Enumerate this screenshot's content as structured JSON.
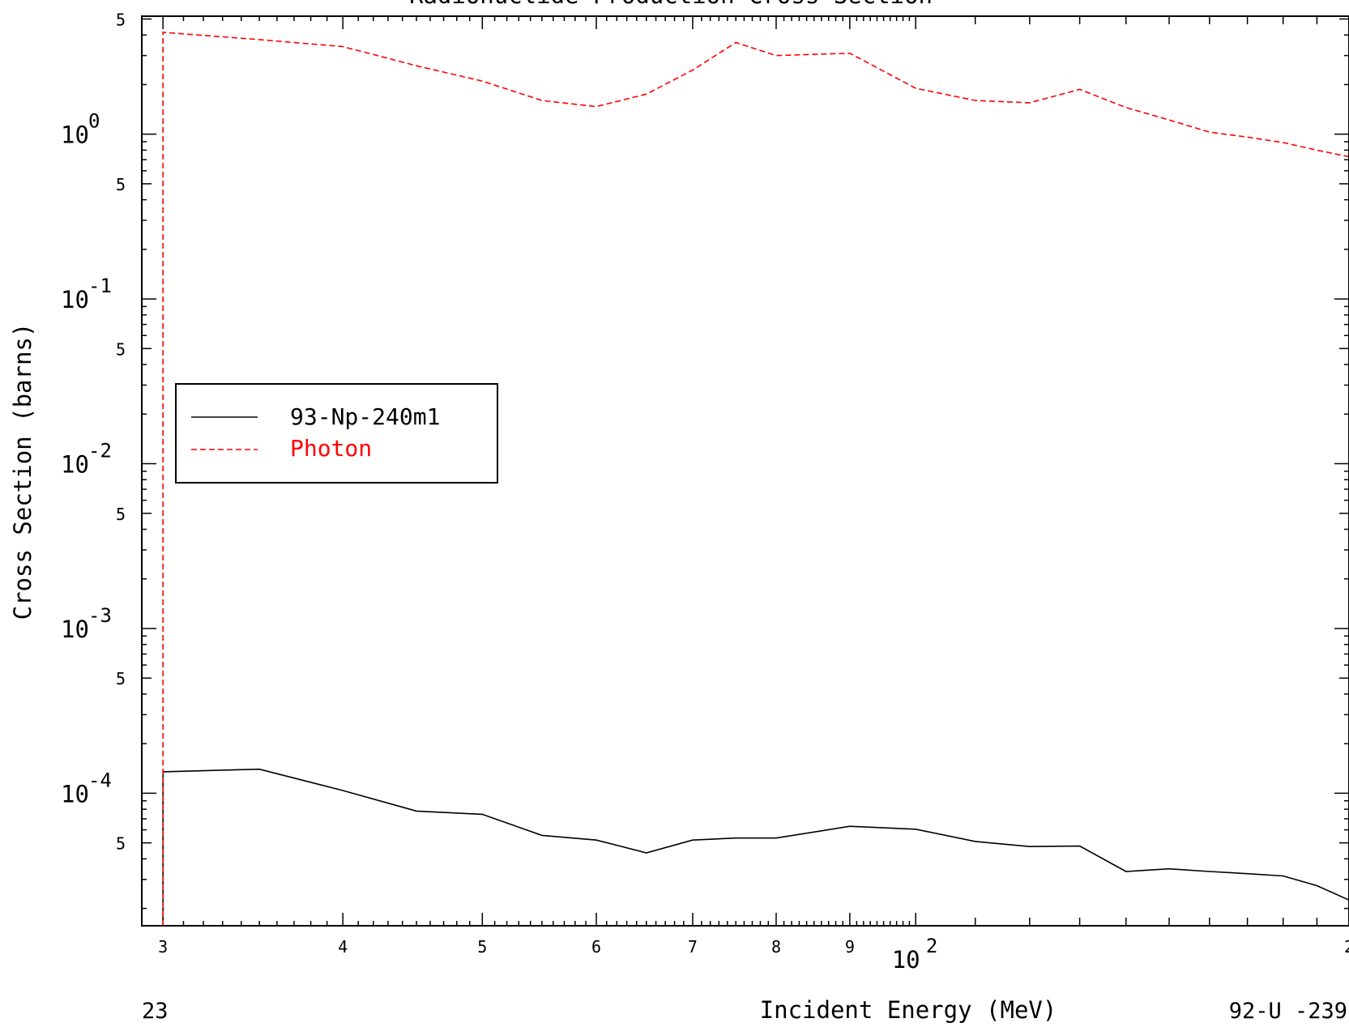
{
  "chart_data": {
    "type": "line",
    "title": "Radionuclide Production Cross Section",
    "xlabel": "Incident Energy (MeV)",
    "ylabel": "Cross Section (barns)",
    "xscale": "log",
    "yscale": "log",
    "xlim": [
      29,
      200
    ],
    "ylim": [
      1.57e-05,
      5.2
    ],
    "x_ticks": [
      {
        "value": 30,
        "label": "3"
      },
      {
        "value": 40,
        "label": "4"
      },
      {
        "value": 50,
        "label": "5"
      },
      {
        "value": 60,
        "label": "6"
      },
      {
        "value": 70,
        "label": "7"
      },
      {
        "value": 80,
        "label": "8"
      },
      {
        "value": 90,
        "label": "9"
      },
      {
        "value": 200,
        "label": "2"
      }
    ],
    "x_decade_label": {
      "value": 100,
      "base": "10",
      "exp": "2"
    },
    "y_decades": [
      {
        "value": 1,
        "base": "10",
        "exp": "0"
      },
      {
        "value": 0.1,
        "base": "10",
        "exp": "-1"
      },
      {
        "value": 0.01,
        "base": "10",
        "exp": "-2"
      },
      {
        "value": 0.001,
        "base": "10",
        "exp": "-3"
      },
      {
        "value": 0.0001,
        "base": "10",
        "exp": "-4"
      }
    ],
    "y_five_ticks": [
      5,
      0.5,
      0.05,
      0.005,
      0.0005,
      5e-05
    ],
    "y_five_label": "5",
    "grid": false,
    "legend_position": "center-left",
    "series": [
      {
        "name": "93-Np-240m1",
        "color": "#000000",
        "dash": "solid",
        "x": [
          30,
          30,
          35,
          40,
          45,
          50,
          55,
          60,
          65,
          70,
          75,
          80,
          90,
          100,
          110,
          120,
          130,
          140,
          150,
          160,
          170,
          180,
          190,
          200
        ],
        "y": [
          1.57e-05,
          0.000135,
          0.00014,
          0.000104,
          7.8e-05,
          7.45e-05,
          5.55e-05,
          5.2e-05,
          4.35e-05,
          5.2e-05,
          5.35e-05,
          5.35e-05,
          6.3e-05,
          6.05e-05,
          5.1e-05,
          4.75e-05,
          4.78e-05,
          3.35e-05,
          3.48e-05,
          3.35e-05,
          3.25e-05,
          3.15e-05,
          2.75e-05,
          2.25e-05
        ]
      },
      {
        "name": "Photon",
        "color": "#ff0000",
        "dash": "dashed",
        "x": [
          30,
          30,
          35,
          40,
          45,
          50,
          55,
          60,
          65,
          70,
          75,
          80,
          90,
          100,
          110,
          120,
          130,
          140,
          150,
          160,
          170,
          180,
          190,
          200
        ],
        "y": [
          1.57e-05,
          4.15,
          3.75,
          3.4,
          2.6,
          2.1,
          1.6,
          1.47,
          1.75,
          2.45,
          3.6,
          3.0,
          3.1,
          1.9,
          1.6,
          1.55,
          1.87,
          1.45,
          1.22,
          1.03,
          0.96,
          0.89,
          0.8,
          0.73
        ]
      }
    ],
    "footer_left": "23",
    "footer_right": "92-U -239"
  }
}
